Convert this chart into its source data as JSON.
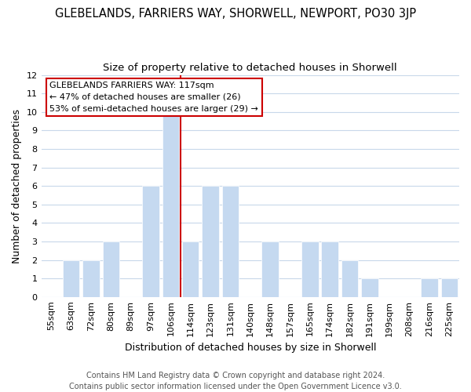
{
  "title": "GLEBELANDS, FARRIERS WAY, SHORWELL, NEWPORT, PO30 3JP",
  "subtitle": "Size of property relative to detached houses in Shorwell",
  "xlabel": "Distribution of detached houses by size in Shorwell",
  "ylabel": "Number of detached properties",
  "bar_labels": [
    "55sqm",
    "63sqm",
    "72sqm",
    "80sqm",
    "89sqm",
    "97sqm",
    "106sqm",
    "114sqm",
    "123sqm",
    "131sqm",
    "140sqm",
    "148sqm",
    "157sqm",
    "165sqm",
    "174sqm",
    "182sqm",
    "191sqm",
    "199sqm",
    "208sqm",
    "216sqm",
    "225sqm"
  ],
  "bar_values": [
    0,
    2,
    2,
    3,
    0,
    6,
    10,
    3,
    6,
    6,
    0,
    3,
    0,
    3,
    3,
    2,
    1,
    0,
    0,
    1,
    1
  ],
  "bar_color": "#c5d9f0",
  "annotation_title": "GLEBELANDS FARRIERS WAY: 117sqm",
  "annotation_line1": "← 47% of detached houses are smaller (26)",
  "annotation_line2": "53% of semi-detached houses are larger (29) →",
  "vline_color": "#cc0000",
  "vline_x_index": 7,
  "ylim": [
    0,
    12
  ],
  "yticks": [
    0,
    1,
    2,
    3,
    4,
    5,
    6,
    7,
    8,
    9,
    10,
    11,
    12
  ],
  "footer_line1": "Contains HM Land Registry data © Crown copyright and database right 2024.",
  "footer_line2": "Contains public sector information licensed under the Open Government Licence v3.0.",
  "background_color": "#ffffff",
  "grid_color": "#c8d8ea",
  "title_fontsize": 10.5,
  "subtitle_fontsize": 9.5,
  "axis_label_fontsize": 9,
  "tick_fontsize": 8,
  "annot_fontsize": 8,
  "footer_fontsize": 7
}
